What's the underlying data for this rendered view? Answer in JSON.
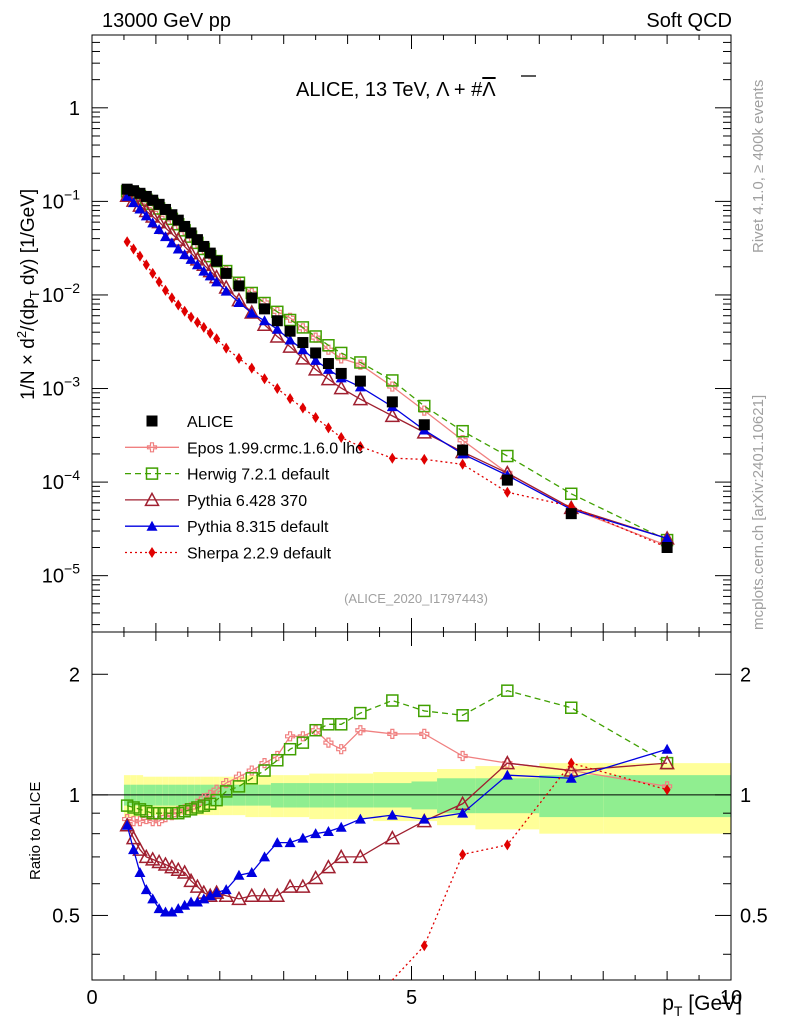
{
  "header": {
    "left": "13000 GeV pp",
    "right": "Soft QCD"
  },
  "side_labels": {
    "rivet": "Rivet 4.1.0, ≥ 400k events",
    "mcplots": "mcplots.cern.ch [arXiv:2401.10621]"
  },
  "chart_data": [
    {
      "type": "scatter",
      "panel": "main",
      "title": "ALICE, 13 TeV,Λ + #Λ̅",
      "title_main": "ALICE, 13 TeV,",
      "title_sym": "Λ + #",
      "title_bar": "Λ",
      "ylabel": "1/N × d²/(dp_T dy) [1/GeV]",
      "xlabel": "p_T [GeV]",
      "xlim": [
        0,
        10
      ],
      "ylim": [
        2.5e-06,
        6
      ],
      "yscale": "log",
      "ytick_labels": [
        "10⁻⁵",
        "10⁻⁴",
        "10⁻³",
        "10⁻²",
        "10⁻¹",
        "1"
      ],
      "yticks": [
        1e-05,
        0.0001,
        0.001,
        0.01,
        0.1,
        1
      ],
      "watermark": "(ALICE_2020_I1797443)",
      "legend_position": "left-bottom",
      "x": [
        0.55,
        0.65,
        0.75,
        0.85,
        0.95,
        1.05,
        1.15,
        1.25,
        1.35,
        1.45,
        1.55,
        1.65,
        1.75,
        1.85,
        1.95,
        2.1,
        2.3,
        2.5,
        2.7,
        2.9,
        3.1,
        3.3,
        3.5,
        3.7,
        3.9,
        4.2,
        4.7,
        5.2,
        5.8,
        6.5,
        7.5,
        9.0
      ],
      "series": [
        {
          "name": "ALICE",
          "color": "#000000",
          "marker": "square-filled",
          "line": "none",
          "values": [
            0.135,
            0.13,
            0.122,
            0.113,
            0.103,
            0.093,
            0.082,
            0.072,
            0.063,
            0.054,
            0.046,
            0.039,
            0.033,
            0.028,
            0.023,
            0.017,
            0.0125,
            0.0093,
            0.0071,
            0.0053,
            0.0041,
            0.0031,
            0.0024,
            0.00185,
            0.00145,
            0.0012,
            0.00072,
            0.00041,
            0.00022,
            0.000105,
            4.6e-05,
            2e-05
          ]
        },
        {
          "name": "Epos 1.99.crmc.1.6.0 lhc",
          "color": "#f08080",
          "marker": "plus-open",
          "line": "solid",
          "values": [
            0.12,
            0.114,
            0.106,
            0.098,
            0.089,
            0.081,
            0.072,
            0.064,
            0.057,
            0.049,
            0.042,
            0.036,
            0.031,
            0.027,
            0.023,
            0.018,
            0.0135,
            0.0105,
            0.0083,
            0.0066,
            0.0057,
            0.0044,
            0.0035,
            0.0026,
            0.0021,
            0.0018,
            0.00105,
            0.00058,
            0.00028,
            0.000125,
            5.2e-05,
            2.1e-05
          ]
        },
        {
          "name": "Herwig 7.2.1 default",
          "color": "#40a000",
          "marker": "square-open",
          "line": "dashed",
          "values": [
            0.128,
            0.122,
            0.114,
            0.104,
            0.094,
            0.084,
            0.074,
            0.065,
            0.057,
            0.049,
            0.042,
            0.036,
            0.031,
            0.026,
            0.023,
            0.018,
            0.0135,
            0.0105,
            0.0082,
            0.0066,
            0.0054,
            0.0045,
            0.0036,
            0.0029,
            0.0024,
            0.0019,
            0.00122,
            0.00065,
            0.00035,
            0.00019,
            7.5e-05,
            2.4e-05
          ]
        },
        {
          "name": "Pythia 6.428 370",
          "color": "#a02030",
          "marker": "triangle-open",
          "line": "solid",
          "values": [
            0.115,
            0.102,
            0.09,
            0.079,
            0.069,
            0.06,
            0.052,
            0.045,
            0.039,
            0.033,
            0.028,
            0.024,
            0.021,
            0.018,
            0.0155,
            0.012,
            0.0088,
            0.0065,
            0.0048,
            0.0036,
            0.0028,
            0.0021,
            0.0016,
            0.00126,
            0.00101,
            0.00077,
            0.00051,
            0.00034,
            0.00021,
            0.000125,
            5.3e-05,
            2.5e-05
          ]
        },
        {
          "name": "Pythia 8.315 default",
          "color": "#0000e0",
          "marker": "triangle-filled",
          "line": "solid",
          "values": [
            0.113,
            0.097,
            0.083,
            0.07,
            0.059,
            0.05,
            0.042,
            0.036,
            0.031,
            0.027,
            0.024,
            0.021,
            0.018,
            0.016,
            0.0138,
            0.011,
            0.0083,
            0.0064,
            0.0053,
            0.0043,
            0.0033,
            0.0026,
            0.002,
            0.0016,
            0.0013,
            0.00104,
            0.00064,
            0.00036,
            0.0002,
            0.000118,
            5.1e-05,
            2.5e-05
          ]
        },
        {
          "name": "Sherpa 2.2.9 default",
          "color": "#e00000",
          "marker": "diamond-filled",
          "line": "dotted",
          "values": [
            0.037,
            0.031,
            0.026,
            0.021,
            0.017,
            0.0138,
            0.0112,
            0.0093,
            0.0078,
            0.0067,
            0.0058,
            0.0051,
            0.0045,
            0.0039,
            0.0034,
            0.0027,
            0.0021,
            0.00165,
            0.00127,
            0.001,
            0.00078,
            0.00062,
            0.00049,
            0.00038,
            0.0003,
            0.00024,
            0.00018,
            0.000175,
            0.000155,
            7.8e-05,
            5.5e-05,
            2e-05
          ]
        }
      ]
    },
    {
      "type": "scatter",
      "panel": "ratio",
      "ylabel": "Ratio to ALICE",
      "xlabel": "p_T [GeV]",
      "xlim": [
        0,
        10
      ],
      "ylim": [
        0.345,
        2.55
      ],
      "yscale": "log",
      "yticks": [
        0.5,
        1,
        2
      ],
      "ytick_labels": [
        "0.5",
        "1",
        "2"
      ],
      "xticks": [
        0,
        5,
        10
      ],
      "xtick_labels": [
        "0",
        "5",
        "10"
      ],
      "band_x_edges": [
        0.5,
        0.6,
        0.7,
        0.8,
        0.9,
        1.0,
        1.1,
        1.2,
        1.3,
        1.4,
        1.5,
        1.6,
        1.7,
        1.8,
        1.9,
        2.0,
        2.2,
        2.4,
        2.6,
        2.8,
        3.0,
        3.2,
        3.4,
        3.6,
        3.8,
        4.0,
        4.4,
        5.0,
        5.4,
        6.0,
        7.0,
        8.0,
        10.0
      ],
      "band_stat": [
        0.06,
        0.06,
        0.06,
        0.06,
        0.06,
        0.06,
        0.06,
        0.06,
        0.06,
        0.06,
        0.06,
        0.06,
        0.06,
        0.06,
        0.06,
        0.06,
        0.06,
        0.06,
        0.06,
        0.07,
        0.07,
        0.07,
        0.07,
        0.07,
        0.07,
        0.07,
        0.07,
        0.08,
        0.1,
        0.1,
        0.12,
        0.12
      ],
      "band_total": [
        0.12,
        0.12,
        0.12,
        0.11,
        0.11,
        0.11,
        0.11,
        0.11,
        0.11,
        0.11,
        0.11,
        0.11,
        0.11,
        0.11,
        0.11,
        0.11,
        0.11,
        0.12,
        0.12,
        0.12,
        0.12,
        0.12,
        0.13,
        0.13,
        0.13,
        0.13,
        0.14,
        0.14,
        0.16,
        0.18,
        0.2,
        0.2
      ],
      "series": [
        {
          "name": "Epos 1.99.crmc.1.6.0 lhc",
          "values": [
            0.87,
            0.86,
            0.86,
            0.87,
            0.86,
            0.86,
            0.88,
            0.89,
            0.91,
            0.92,
            0.93,
            0.95,
            0.98,
            1.0,
            1.03,
            1.07,
            1.11,
            1.15,
            1.2,
            1.25,
            1.4,
            1.4,
            1.45,
            1.35,
            1.3,
            1.45,
            1.42,
            1.42,
            1.25,
            1.2,
            1.15,
            1.05
          ]
        },
        {
          "name": "Herwig 7.2.1 default",
          "values": [
            0.94,
            0.93,
            0.92,
            0.91,
            0.9,
            0.9,
            0.9,
            0.9,
            0.9,
            0.91,
            0.92,
            0.93,
            0.94,
            0.95,
            0.97,
            1.02,
            1.05,
            1.1,
            1.15,
            1.22,
            1.3,
            1.35,
            1.45,
            1.5,
            1.5,
            1.6,
            1.72,
            1.62,
            1.58,
            1.82,
            1.65,
            1.2
          ]
        },
        {
          "name": "Pythia 6.428 370",
          "values": [
            0.84,
            0.78,
            0.73,
            0.7,
            0.69,
            0.68,
            0.67,
            0.66,
            0.65,
            0.64,
            0.61,
            0.59,
            0.57,
            0.56,
            0.57,
            0.56,
            0.55,
            0.56,
            0.56,
            0.56,
            0.59,
            0.59,
            0.62,
            0.66,
            0.7,
            0.7,
            0.78,
            0.86,
            0.95,
            1.2,
            1.15,
            1.2
          ]
        },
        {
          "name": "Pythia 8.315 default",
          "values": [
            0.84,
            0.73,
            0.64,
            0.58,
            0.55,
            0.52,
            0.51,
            0.51,
            0.52,
            0.53,
            0.54,
            0.54,
            0.55,
            0.56,
            0.57,
            0.58,
            0.63,
            0.64,
            0.7,
            0.76,
            0.76,
            0.78,
            0.8,
            0.81,
            0.83,
            0.87,
            0.89,
            0.87,
            0.9,
            1.12,
            1.1,
            1.3
          ]
        },
        {
          "name": "Sherpa 2.2.9 default",
          "values": [
            null,
            null,
            null,
            null,
            null,
            null,
            null,
            null,
            null,
            null,
            null,
            null,
            null,
            null,
            null,
            null,
            null,
            null,
            null,
            null,
            null,
            null,
            null,
            null,
            null,
            null,
            null,
            0.42,
            0.71,
            0.75,
            1.2,
            1.03
          ]
        }
      ]
    }
  ]
}
